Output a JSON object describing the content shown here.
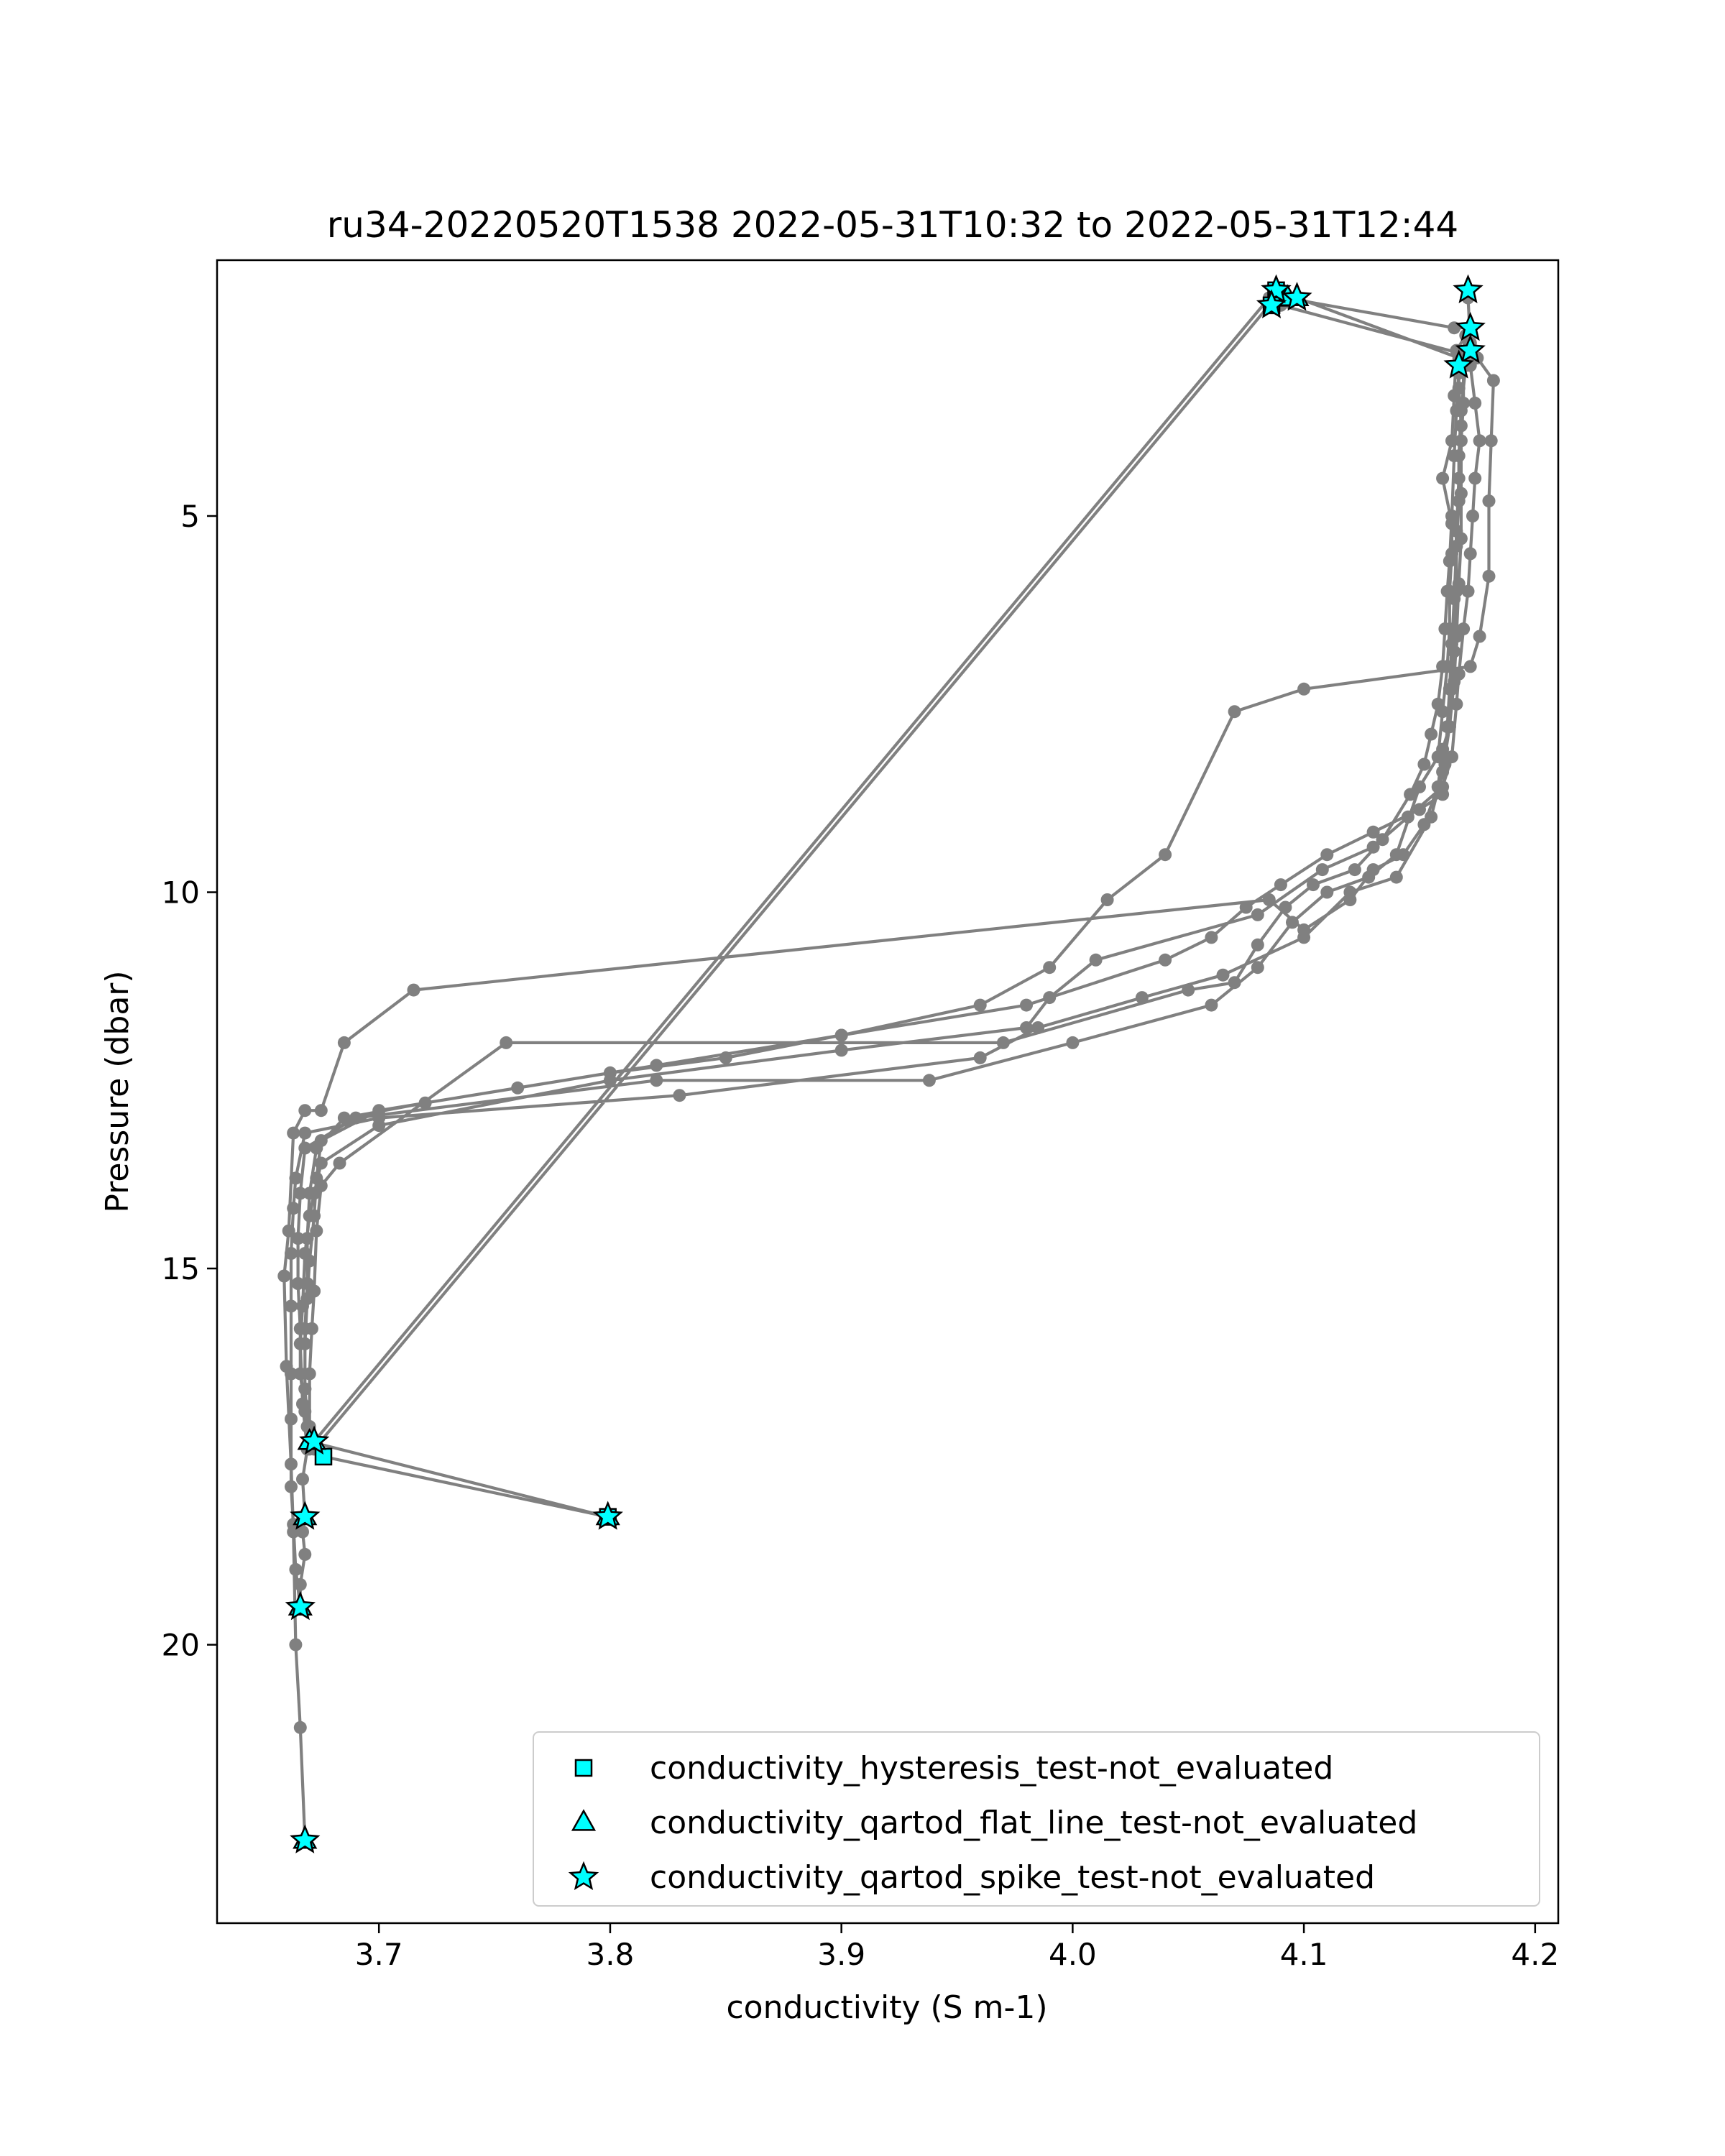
{
  "chart_data": {
    "type": "scatter",
    "title": "ru34-20220520T1538 2022-05-31T10:32 to 2022-05-31T12:44",
    "xlabel": "conductivity (S m-1)",
    "ylabel": "Pressure (dbar)",
    "xlim": [
      3.63,
      4.21
    ],
    "ylim": [
      23.7,
      1.6
    ],
    "y_inverted": true,
    "x_ticks": [
      "3.7",
      "3.8",
      "3.9",
      "4.0",
      "4.1",
      "4.2"
    ],
    "y_ticks": [
      "5",
      "10",
      "15",
      "20"
    ],
    "grid": false,
    "legend_position": "bottom-right",
    "line_color": "#808080",
    "flag_color": "#00ffff",
    "profile": [
      [
        3.668,
        22.6
      ],
      [
        3.666,
        21.1
      ],
      [
        3.664,
        20.0
      ],
      [
        3.663,
        18.5
      ],
      [
        3.662,
        17.6
      ],
      [
        3.66,
        16.3
      ],
      [
        3.659,
        15.1
      ],
      [
        3.661,
        14.5
      ],
      [
        3.663,
        13.2
      ],
      [
        3.668,
        12.9
      ],
      [
        3.675,
        12.9
      ],
      [
        3.685,
        12.0
      ],
      [
        3.715,
        11.3
      ],
      [
        4.085,
        10.1
      ],
      [
        4.1,
        10.5
      ],
      [
        4.12,
        10.1
      ],
      [
        4.13,
        9.7
      ],
      [
        4.143,
        9.5
      ],
      [
        4.152,
        9.1
      ],
      [
        4.158,
        8.6
      ],
      [
        4.16,
        8.1
      ],
      [
        4.163,
        7.8
      ],
      [
        4.164,
        7.3
      ],
      [
        4.165,
        6.8
      ],
      [
        4.166,
        6.0
      ],
      [
        4.166,
        5.2
      ],
      [
        4.167,
        4.5
      ],
      [
        4.168,
        3.8
      ],
      [
        4.167,
        3.3
      ],
      [
        4.167,
        2.9
      ],
      [
        4.097,
        2.1
      ],
      [
        4.088,
        2.0
      ],
      [
        4.086,
        2.2
      ],
      [
        4.09,
        2.2
      ],
      [
        4.175,
        2.9
      ],
      [
        4.182,
        3.2
      ],
      [
        4.181,
        4.0
      ],
      [
        4.18,
        4.8
      ],
      [
        4.18,
        5.8
      ],
      [
        4.176,
        6.6
      ],
      [
        4.172,
        7.0
      ],
      [
        4.1,
        7.3
      ],
      [
        4.07,
        7.6
      ],
      [
        4.04,
        9.5
      ],
      [
        4.015,
        10.1
      ],
      [
        3.99,
        11.0
      ],
      [
        3.96,
        11.5
      ],
      [
        3.9,
        11.9
      ],
      [
        3.85,
        12.2
      ],
      [
        3.8,
        12.4
      ],
      [
        3.72,
        12.8
      ],
      [
        3.685,
        13.0
      ],
      [
        3.673,
        13.4
      ],
      [
        3.67,
        14.0
      ],
      [
        3.669,
        14.6
      ],
      [
        3.669,
        15.2
      ],
      [
        3.668,
        15.8
      ],
      [
        3.668,
        16.6
      ],
      [
        3.669,
        17.1
      ],
      [
        3.676,
        17.5
      ],
      [
        3.799,
        18.3
      ],
      [
        3.67,
        17.3
      ],
      [
        3.668,
        16.9
      ],
      [
        3.666,
        16.4
      ],
      [
        3.666,
        15.8
      ],
      [
        3.665,
        15.2
      ],
      [
        3.665,
        14.6
      ],
      [
        3.666,
        14.0
      ],
      [
        3.668,
        13.4
      ],
      [
        3.69,
        13.0
      ],
      [
        3.82,
        12.5
      ],
      [
        3.938,
        12.5
      ],
      [
        4.0,
        12.0
      ],
      [
        4.06,
        11.5
      ],
      [
        4.08,
        11.0
      ],
      [
        4.095,
        10.4
      ],
      [
        4.11,
        10.0
      ],
      [
        4.128,
        9.8
      ],
      [
        4.14,
        9.5
      ],
      [
        4.15,
        8.6
      ],
      [
        4.158,
        8.2
      ],
      [
        4.16,
        7.6
      ],
      [
        4.162,
        7.0
      ],
      [
        4.163,
        6.5
      ],
      [
        4.163,
        6.0
      ],
      [
        4.164,
        5.5
      ],
      [
        4.164,
        5.1
      ],
      [
        4.16,
        4.5
      ],
      [
        4.164,
        4.0
      ],
      [
        4.165,
        3.4
      ],
      [
        4.166,
        2.8
      ],
      [
        4.172,
        2.5
      ],
      [
        4.165,
        2.5
      ],
      [
        4.092,
        2.1
      ],
      [
        4.085,
        2.1
      ],
      [
        3.672,
        17.3
      ],
      [
        3.67,
        17.1
      ],
      [
        3.67,
        16.4
      ],
      [
        3.671,
        15.8
      ],
      [
        3.672,
        15.3
      ],
      [
        3.673,
        14.5
      ],
      [
        3.675,
        13.9
      ],
      [
        3.683,
        13.6
      ],
      [
        3.755,
        12.0
      ],
      [
        3.97,
        12.0
      ],
      [
        4.05,
        11.3
      ],
      [
        4.07,
        11.2
      ],
      [
        4.08,
        10.7
      ],
      [
        4.092,
        10.2
      ],
      [
        4.104,
        9.9
      ],
      [
        4.122,
        9.7
      ],
      [
        4.134,
        9.3
      ],
      [
        4.146,
        8.7
      ],
      [
        4.152,
        8.3
      ],
      [
        4.155,
        7.9
      ],
      [
        4.158,
        7.5
      ],
      [
        4.16,
        7.0
      ],
      [
        4.161,
        6.5
      ],
      [
        4.162,
        6.0
      ],
      [
        4.163,
        5.6
      ],
      [
        4.164,
        5.0
      ],
      [
        4.165,
        4.2
      ],
      [
        4.166,
        3.6
      ],
      [
        4.167,
        3.1
      ],
      [
        4.17,
        2.6
      ],
      [
        4.172,
        3.0
      ],
      [
        4.174,
        3.5
      ],
      [
        4.176,
        4.0
      ],
      [
        4.174,
        4.5
      ],
      [
        4.173,
        5.0
      ],
      [
        4.172,
        5.5
      ],
      [
        4.171,
        6.0
      ],
      [
        4.169,
        6.5
      ],
      [
        4.167,
        7.1
      ],
      [
        4.166,
        7.5
      ],
      [
        4.164,
        8.2
      ],
      [
        4.16,
        8.6
      ],
      [
        4.145,
        9.0
      ],
      [
        4.13,
        9.4
      ],
      [
        4.108,
        9.7
      ],
      [
        4.08,
        10.3
      ],
      [
        4.01,
        10.9
      ],
      [
        3.99,
        11.4
      ],
      [
        3.98,
        11.8
      ],
      [
        3.9,
        12.1
      ],
      [
        3.8,
        12.5
      ],
      [
        3.7,
        13.1
      ],
      [
        3.675,
        13.6
      ],
      [
        3.672,
        14.0
      ],
      [
        3.67,
        14.3
      ],
      [
        3.668,
        14.8
      ],
      [
        3.667,
        15.5
      ],
      [
        3.666,
        16.0
      ],
      [
        3.667,
        16.8
      ],
      [
        3.669,
        17.4
      ],
      [
        3.667,
        17.8
      ],
      [
        3.668,
        18.3
      ],
      [
        3.667,
        18.5
      ],
      [
        3.668,
        18.8
      ],
      [
        3.666,
        19.2
      ],
      [
        3.666,
        19.5
      ],
      [
        3.664,
        19.0
      ],
      [
        3.663,
        18.4
      ],
      [
        3.662,
        17.9
      ],
      [
        3.662,
        17.0
      ],
      [
        3.662,
        16.4
      ],
      [
        3.662,
        15.5
      ],
      [
        3.662,
        14.8
      ],
      [
        3.663,
        14.2
      ],
      [
        3.664,
        13.8
      ],
      [
        3.668,
        13.2
      ],
      [
        3.7,
        13.0
      ],
      [
        3.83,
        12.7
      ],
      [
        3.96,
        12.2
      ],
      [
        3.985,
        11.8
      ],
      [
        4.03,
        11.4
      ],
      [
        4.065,
        11.1
      ],
      [
        4.1,
        10.6
      ],
      [
        4.12,
        10.0
      ],
      [
        4.14,
        9.8
      ],
      [
        4.155,
        9.0
      ],
      [
        4.16,
        8.4
      ],
      [
        4.163,
        7.8
      ],
      [
        4.165,
        7.2
      ],
      [
        4.166,
        6.6
      ],
      [
        4.167,
        5.9
      ],
      [
        4.168,
        5.3
      ],
      [
        4.168,
        4.7
      ],
      [
        4.168,
        4.0
      ],
      [
        4.169,
        3.5
      ],
      [
        4.169,
        3.0
      ],
      [
        4.172,
        2.7
      ],
      [
        4.171,
        2.1
      ],
      [
        4.171,
        2.1
      ],
      [
        4.172,
        2.7
      ],
      [
        4.17,
        3.0
      ],
      [
        4.168,
        3.6
      ],
      [
        4.167,
        4.2
      ],
      [
        4.167,
        4.8
      ],
      [
        4.166,
        5.4
      ],
      [
        4.165,
        6.1
      ],
      [
        4.164,
        6.7
      ],
      [
        4.163,
        7.3
      ],
      [
        4.162,
        7.8
      ],
      [
        4.161,
        8.3
      ],
      [
        4.16,
        8.7
      ],
      [
        4.15,
        8.9
      ],
      [
        4.13,
        9.2
      ],
      [
        4.11,
        9.5
      ],
      [
        4.09,
        9.9
      ],
      [
        4.075,
        10.2
      ],
      [
        4.06,
        10.6
      ],
      [
        4.04,
        10.9
      ],
      [
        3.98,
        11.5
      ],
      [
        3.9,
        11.9
      ],
      [
        3.82,
        12.3
      ],
      [
        3.76,
        12.6
      ],
      [
        3.7,
        12.9
      ],
      [
        3.675,
        13.3
      ],
      [
        3.673,
        13.8
      ],
      [
        3.672,
        14.3
      ],
      [
        3.67,
        14.9
      ],
      [
        3.669,
        15.4
      ],
      [
        3.668,
        16.0
      ],
      [
        3.668,
        16.6
      ],
      [
        3.67,
        17.4
      ],
      [
        3.672,
        17.4
      ],
      [
        4.085,
        2.2
      ]
    ],
    "flag_series": [
      {
        "name": "conductivity_hysteresis_test-not_evaluated",
        "marker": "square",
        "points": [
          [
            4.088,
            2.0
          ],
          [
            4.09,
            2.1
          ],
          [
            4.086,
            2.2
          ],
          [
            3.676,
            17.5
          ],
          [
            3.799,
            18.3
          ]
        ]
      },
      {
        "name": "conductivity_qartod_flat_line_test-not_evaluated",
        "marker": "triangle",
        "points": [
          [
            4.097,
            2.1
          ],
          [
            4.093,
            2.1
          ],
          [
            3.672,
            17.3
          ],
          [
            3.67,
            17.3
          ],
          [
            3.799,
            18.3
          ],
          [
            3.668,
            18.3
          ],
          [
            3.666,
            19.5
          ],
          [
            3.668,
            22.6
          ]
        ]
      },
      {
        "name": "conductivity_qartod_spike_test-not_evaluated",
        "marker": "star",
        "points": [
          [
            4.088,
            2.0
          ],
          [
            4.086,
            2.2
          ],
          [
            4.097,
            2.1
          ],
          [
            4.171,
            2.0
          ],
          [
            4.172,
            2.5
          ],
          [
            4.172,
            2.8
          ],
          [
            4.167,
            3.0
          ],
          [
            3.672,
            17.3
          ],
          [
            3.799,
            18.3
          ],
          [
            3.668,
            18.3
          ],
          [
            3.666,
            19.5
          ],
          [
            3.668,
            22.6
          ]
        ]
      }
    ]
  }
}
